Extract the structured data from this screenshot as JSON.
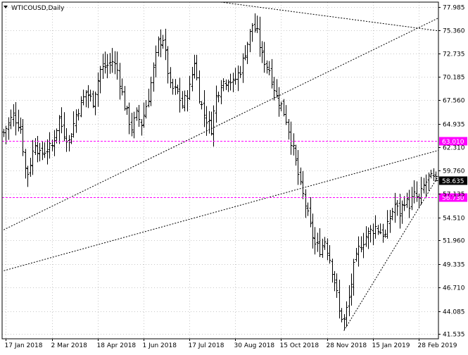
{
  "window": {
    "title": "WTICOUSD,Daily",
    "menu_icon": "triangle-down-icon"
  },
  "colors": {
    "background": "#ffffff",
    "bars": "#000000",
    "grid": "#c8c8c8",
    "level_lines": "#ff00ff",
    "level_label_bg": "#ff00ff",
    "level_label_text": "#ffffff",
    "price_label_bg": "#000000",
    "price_label_text": "#ffffff",
    "trendlines": "#000000"
  },
  "chart_data": {
    "type": "ohlc",
    "symbol": "WTICOUSD",
    "timeframe": "Daily",
    "xlabel": "",
    "ylabel": "",
    "grid": true,
    "ylim": [
      41.0,
      78.5
    ],
    "y_ticks": [
      77.985,
      75.36,
      72.735,
      70.185,
      67.56,
      64.935,
      62.31,
      59.76,
      57.135,
      54.51,
      51.96,
      49.335,
      46.71,
      44.085,
      41.535
    ],
    "x_ticks": [
      {
        "label": "17 Jan 2018",
        "index": 1
      },
      {
        "label": "2 Mar 2018",
        "index": 20
      },
      {
        "label": "18 Apr 2018",
        "index": 39
      },
      {
        "label": "1 Jun 2018",
        "index": 58
      },
      {
        "label": "17 Jul 2018",
        "index": 77
      },
      {
        "label": "30 Aug 2018",
        "index": 96
      },
      {
        "label": "15 Oct 2018",
        "index": 115
      },
      {
        "label": "28 Nov 2018",
        "index": 134
      },
      {
        "label": "15 Jan 2019",
        "index": 153
      },
      {
        "label": "28 Feb 2019",
        "index": 172
      }
    ],
    "bar_count": 180,
    "close_path": [
      [
        0,
        64.0
      ],
      [
        4,
        66.0
      ],
      [
        7,
        64.5
      ],
      [
        9,
        60.0
      ],
      [
        10,
        59.5
      ],
      [
        13,
        63.0
      ],
      [
        15,
        61.5
      ],
      [
        17,
        62.0
      ],
      [
        20,
        62.5
      ],
      [
        23,
        65.5
      ],
      [
        25,
        64.0
      ],
      [
        27,
        63.0
      ],
      [
        30,
        66.0
      ],
      [
        34,
        68.5
      ],
      [
        37,
        67.5
      ],
      [
        40,
        71.0
      ],
      [
        43,
        71.5
      ],
      [
        45,
        72.0
      ],
      [
        47,
        71.0
      ],
      [
        50,
        67.0
      ],
      [
        53,
        64.5
      ],
      [
        55,
        66.0
      ],
      [
        57,
        65.0
      ],
      [
        60,
        68.0
      ],
      [
        62,
        71.0
      ],
      [
        64,
        74.0
      ],
      [
        66,
        74.5
      ],
      [
        69,
        69.0
      ],
      [
        72,
        68.5
      ],
      [
        74,
        67.0
      ],
      [
        77,
        69.0
      ],
      [
        79,
        72.0
      ],
      [
        81,
        68.0
      ],
      [
        83,
        66.0
      ],
      [
        86,
        64.5
      ],
      [
        88,
        68.0
      ],
      [
        90,
        69.5
      ],
      [
        93,
        70.0
      ],
      [
        95,
        69.5
      ],
      [
        98,
        71.0
      ],
      [
        100,
        73.0
      ],
      [
        103,
        76.0
      ],
      [
        105,
        75.0
      ],
      [
        107,
        72.5
      ],
      [
        110,
        71.0
      ],
      [
        113,
        68.0
      ],
      [
        115,
        67.0
      ],
      [
        117,
        65.5
      ],
      [
        120,
        62.0
      ],
      [
        123,
        58.0
      ],
      [
        125,
        56.0
      ],
      [
        127,
        53.5
      ],
      [
        129,
        51.5
      ],
      [
        131,
        51.0
      ],
      [
        133,
        52.0
      ],
      [
        135,
        50.0
      ],
      [
        137,
        47.5
      ],
      [
        138,
        46.0
      ],
      [
        139,
        44.0
      ],
      [
        141,
        43.0
      ],
      [
        143,
        45.5
      ],
      [
        145,
        49.0
      ],
      [
        147,
        51.0
      ],
      [
        150,
        52.5
      ],
      [
        152,
        53.0
      ],
      [
        154,
        53.5
      ],
      [
        156,
        53.0
      ],
      [
        158,
        52.5
      ],
      [
        160,
        54.5
      ],
      [
        162,
        56.0
      ],
      [
        164,
        55.0
      ],
      [
        166,
        56.5
      ],
      [
        168,
        56.0
      ],
      [
        170,
        57.0
      ],
      [
        172,
        56.5
      ],
      [
        174,
        58.0
      ],
      [
        176,
        59.0
      ],
      [
        178,
        58.8
      ],
      [
        179,
        58.6
      ]
    ],
    "levels": [
      {
        "price": 63.01,
        "label": "63.010"
      },
      {
        "price": 56.73,
        "label": "56.730"
      }
    ],
    "current_price": {
      "price": 58.635,
      "label": "58.635"
    },
    "trendlines": [
      {
        "name": "upper-long-trendline",
        "points": [
          [
            -1,
            53.0
          ],
          [
            183,
            77.1
          ]
        ]
      },
      {
        "name": "lower-long-trendline",
        "points": [
          [
            -1,
            48.5
          ],
          [
            183,
            62.2
          ]
        ]
      },
      {
        "name": "top-falling-trendline",
        "points": [
          [
            90,
            78.5
          ],
          [
            183,
            75.2
          ]
        ]
      },
      {
        "name": "recovery-trendline",
        "points": [
          [
            141,
            41.9
          ],
          [
            183,
            60.4
          ]
        ]
      }
    ]
  }
}
